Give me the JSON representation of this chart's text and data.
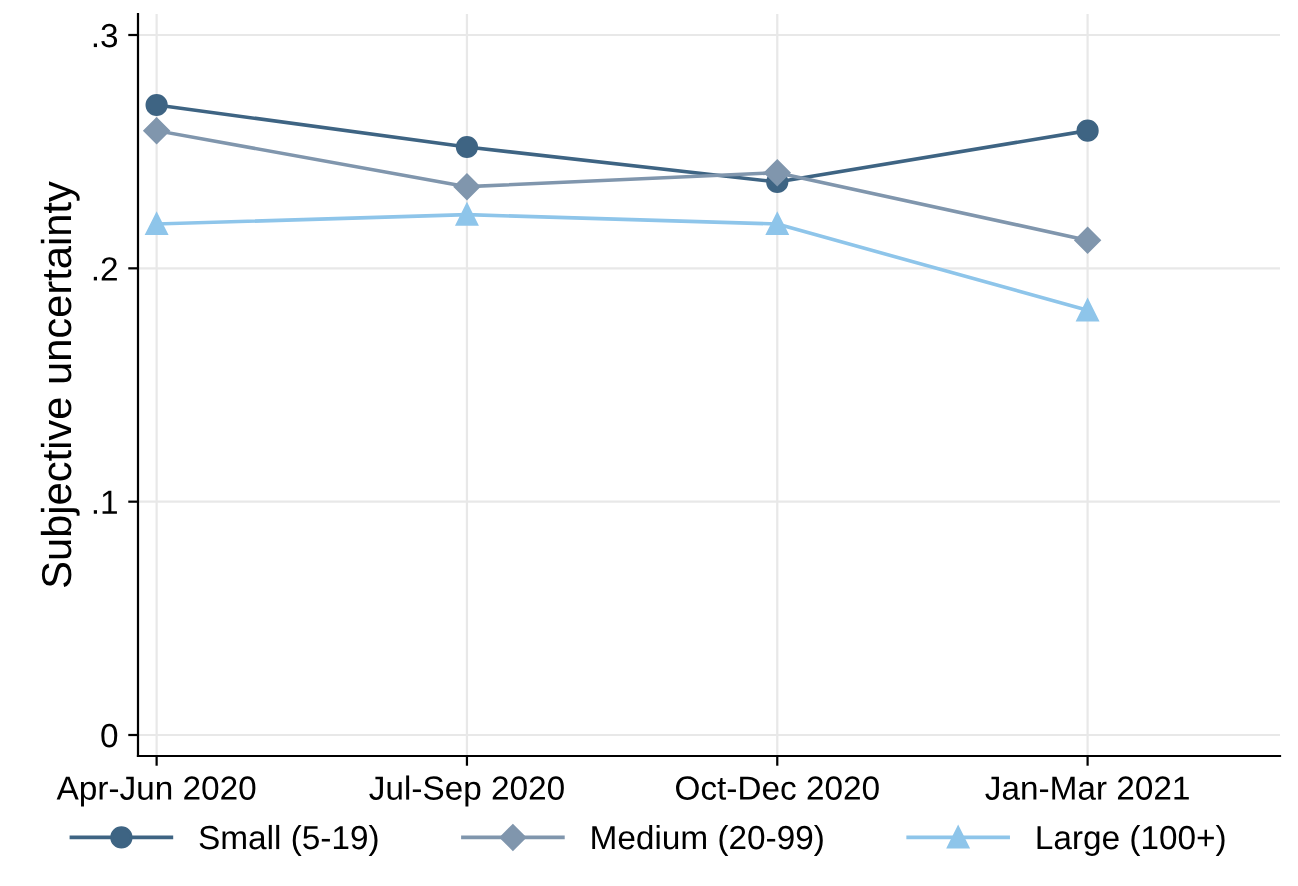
{
  "chart_data": {
    "type": "line",
    "ylabel": "Subjective uncertainty",
    "categories": [
      "Apr-Jun 2020",
      "Jul-Sep 2020",
      "Oct-Dec 2020",
      "Jan-Mar 2021"
    ],
    "series": [
      {
        "name": "Small (5-19)",
        "color": "#3e6483",
        "marker": "circle",
        "values": [
          0.27,
          0.252,
          0.237,
          0.259
        ]
      },
      {
        "name": "Medium (20-99)",
        "color": "#8096ad",
        "marker": "diamond",
        "values": [
          0.259,
          0.235,
          0.241,
          0.212
        ]
      },
      {
        "name": "Large (100+)",
        "color": "#8ec5ea",
        "marker": "triangle",
        "values": [
          0.219,
          0.223,
          0.219,
          0.182
        ]
      }
    ],
    "ylim": [
      -0.009,
      0.309
    ],
    "yticks": [
      {
        "value": 0,
        "label": "0"
      },
      {
        "value": 0.1,
        "label": ".1"
      },
      {
        "value": 0.2,
        "label": ".2"
      },
      {
        "value": 0.3,
        "label": ".3"
      }
    ],
    "grid": true,
    "legend": "bottom"
  }
}
